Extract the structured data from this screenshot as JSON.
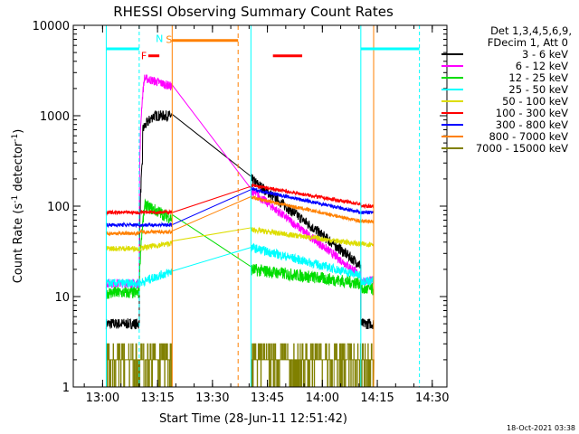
{
  "chart_data": {
    "type": "line",
    "title": "RHESSI Observing Summary Count Rates",
    "xlabel": "Start Time (28-Jun-11 12:51:42)",
    "ylabel_main": "Count Rate (s",
    "ylabel_sup1": "-1",
    "ylabel_mid": " detector",
    "ylabel_sup2": "-1",
    "ylabel_end": ")",
    "y_scale": "log",
    "ylim": [
      1,
      10000
    ],
    "xlim_minutes": [
      12.8667,
      14.5667
    ],
    "x_ticks": [
      {
        "t": 13.0,
        "label": "13:00"
      },
      {
        "t": 13.25,
        "label": "13:15"
      },
      {
        "t": 13.5,
        "label": "13:30"
      },
      {
        "t": 13.75,
        "label": "13:45"
      },
      {
        "t": 14.0,
        "label": "14:00"
      },
      {
        "t": 14.25,
        "label": "14:15"
      },
      {
        "t": 14.5,
        "label": "14:30"
      }
    ],
    "y_ticks": [
      {
        "v": 1,
        "label": "1"
      },
      {
        "v": 10,
        "label": "10"
      },
      {
        "v": 100,
        "label": "100"
      },
      {
        "v": 1000,
        "label": "1000"
      },
      {
        "v": 10000,
        "label": "10000"
      }
    ],
    "legend_header": [
      "Det 1,3,4,5,6,9,",
      "FDecim 1, Att 0"
    ],
    "legend_placement": "right",
    "series": [
      {
        "name": "3 - 6 keV",
        "color": "#000000",
        "key": "s36"
      },
      {
        "name": "6 - 12 keV",
        "color": "#ff00ff",
        "key": "s612"
      },
      {
        "name": "12 - 25 keV",
        "color": "#00dd00",
        "key": "s1225"
      },
      {
        "name": "25 - 50 keV",
        "color": "#00ffff",
        "key": "s2550"
      },
      {
        "name": "50 - 100 keV",
        "color": "#dddd00",
        "key": "s50100"
      },
      {
        "name": "100 - 300 keV",
        "color": "#ff0000",
        "key": "s100300"
      },
      {
        "name": "300 - 800 keV",
        "color": "#0000ff",
        "key": "s300800"
      },
      {
        "name": "800 - 7000 keV",
        "color": "#ff8000",
        "key": "s8007000"
      },
      {
        "name": "7000 - 15000 keV",
        "color": "#808000",
        "key": "s700015000"
      }
    ],
    "flag_labels": {
      "F": "F",
      "N": "N",
      "S": "S"
    },
    "flag_colors": {
      "F": "#ff0000",
      "N": "#00ffff",
      "S": "#ff8000"
    },
    "timestamp": "18-Oct-2021 03:38"
  }
}
